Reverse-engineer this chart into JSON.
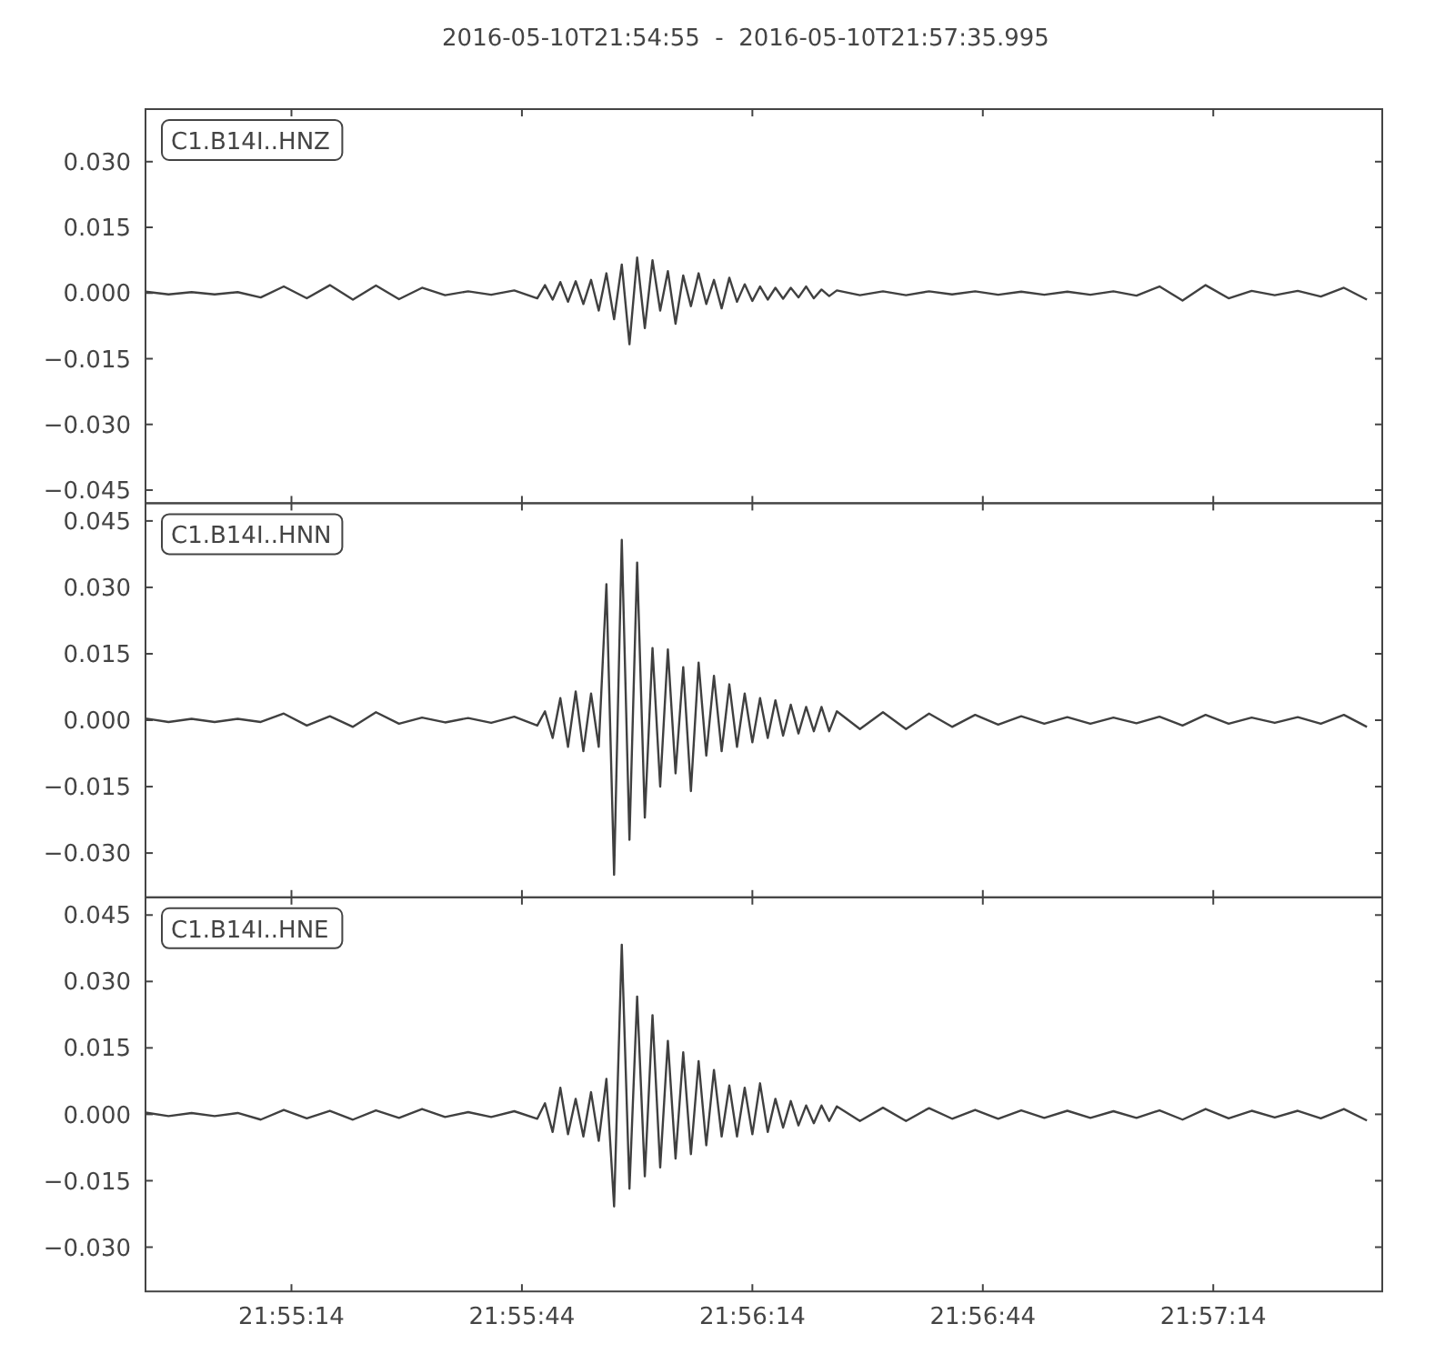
{
  "chart_data": [
    {
      "type": "line",
      "title": "2016-05-10T21:54:55  -  2016-05-10T21:57:35.995",
      "annotations": [
        "C1.B14I..HNZ"
      ],
      "tick_labels": "y",
      "grid": false,
      "xlim": [
        "2016-05-10T21:54:55",
        "2016-05-10T21:57:35.995"
      ],
      "xticks": [
        {
          "value": "2016-05-10T21:55:14",
          "label": null
        },
        {
          "value": "2016-05-10T21:55:44",
          "label": null
        },
        {
          "value": "2016-05-10T21:56:14",
          "label": null
        },
        {
          "value": "2016-05-10T21:56:44",
          "label": null
        },
        {
          "value": "2016-05-10T21:57:14",
          "label": null
        }
      ],
      "ylim": [
        -0.048,
        0.042
      ],
      "yticks": [
        {
          "value": -0.045,
          "label": "−0.045"
        },
        {
          "value": -0.03,
          "label": "−0.030"
        },
        {
          "value": -0.015,
          "label": "−0.015"
        },
        {
          "value": 0,
          "label": "0.000"
        },
        {
          "value": 0.015,
          "label": "0.015"
        },
        {
          "value": 0.03,
          "label": "0.030"
        }
      ],
      "x": [
        "2016-05-10T21:54:55",
        "2016-05-10T21:54:58",
        "2016-05-10T21:55:01",
        "2016-05-10T21:55:04",
        "2016-05-10T21:55:07",
        "2016-05-10T21:55:10",
        "2016-05-10T21:55:13",
        "2016-05-10T21:55:16",
        "2016-05-10T21:55:19",
        "2016-05-10T21:55:22",
        "2016-05-10T21:55:25",
        "2016-05-10T21:55:28",
        "2016-05-10T21:55:31",
        "2016-05-10T21:55:34",
        "2016-05-10T21:55:37",
        "2016-05-10T21:55:40",
        "2016-05-10T21:55:43",
        "2016-05-10T21:55:46",
        "2016-05-10T21:55:47",
        "2016-05-10T21:55:48",
        "2016-05-10T21:55:49",
        "2016-05-10T21:55:50",
        "2016-05-10T21:55:51",
        "2016-05-10T21:55:52",
        "2016-05-10T21:55:53",
        "2016-05-10T21:55:54",
        "2016-05-10T21:55:55",
        "2016-05-10T21:55:56",
        "2016-05-10T21:55:57",
        "2016-05-10T21:55:58",
        "2016-05-10T21:55:59",
        "2016-05-10T21:56:00",
        "2016-05-10T21:56:01",
        "2016-05-10T21:56:02",
        "2016-05-10T21:56:03",
        "2016-05-10T21:56:04",
        "2016-05-10T21:56:05",
        "2016-05-10T21:56:06",
        "2016-05-10T21:56:07",
        "2016-05-10T21:56:08",
        "2016-05-10T21:56:09",
        "2016-05-10T21:56:10",
        "2016-05-10T21:56:11",
        "2016-05-10T21:56:12",
        "2016-05-10T21:56:13",
        "2016-05-10T21:56:14",
        "2016-05-10T21:56:15",
        "2016-05-10T21:56:16",
        "2016-05-10T21:56:17",
        "2016-05-10T21:56:18",
        "2016-05-10T21:56:19",
        "2016-05-10T21:56:20",
        "2016-05-10T21:56:21",
        "2016-05-10T21:56:22",
        "2016-05-10T21:56:23",
        "2016-05-10T21:56:24",
        "2016-05-10T21:56:25",
        "2016-05-10T21:56:28",
        "2016-05-10T21:56:31",
        "2016-05-10T21:56:34",
        "2016-05-10T21:56:37",
        "2016-05-10T21:56:40",
        "2016-05-10T21:56:43",
        "2016-05-10T21:56:46",
        "2016-05-10T21:56:49",
        "2016-05-10T21:56:52",
        "2016-05-10T21:56:55",
        "2016-05-10T21:56:58",
        "2016-05-10T21:57:01",
        "2016-05-10T21:57:04",
        "2016-05-10T21:57:07",
        "2016-05-10T21:57:10",
        "2016-05-10T21:57:13",
        "2016-05-10T21:57:16",
        "2016-05-10T21:57:19",
        "2016-05-10T21:57:22",
        "2016-05-10T21:57:25",
        "2016-05-10T21:57:28",
        "2016-05-10T21:57:31",
        "2016-05-10T21:57:34"
      ],
      "series": [
        {
          "color": "#404040",
          "values": [
            0.0003,
            -0.0003,
            0.0002,
            -0.0003,
            0.0002,
            -0.001,
            0.0015,
            -0.0012,
            0.0018,
            -0.0015,
            0.0017,
            -0.0014,
            0.0012,
            -0.0005,
            0.0004,
            -0.0004,
            0.0006,
            -0.0012,
            0.0018,
            -0.0015,
            0.0025,
            -0.002,
            0.0027,
            -0.0025,
            0.003,
            -0.004,
            0.0045,
            -0.006,
            0.0065,
            -0.0117,
            0.0081,
            -0.008,
            0.0075,
            -0.004,
            0.005,
            -0.007,
            0.004,
            -0.003,
            0.0045,
            -0.0025,
            0.003,
            -0.0035,
            0.0035,
            -0.002,
            0.002,
            -0.0018,
            0.0015,
            -0.0015,
            0.0012,
            -0.0013,
            0.0012,
            -0.001,
            0.0015,
            -0.0012,
            0.0008,
            -0.0007,
            0.0006,
            -0.0005,
            0.0004,
            -0.0005,
            0.0004,
            -0.0003,
            0.0004,
            -0.0004,
            0.0003,
            -0.0004,
            0.0003,
            -0.0004,
            0.0004,
            -0.0006,
            0.0015,
            -0.0017,
            0.0018,
            -0.0012,
            0.0005,
            -0.0005,
            0.0005,
            -0.0008,
            0.0012,
            -0.0015
          ]
        }
      ]
    },
    {
      "type": "line",
      "annotations": [
        "C1.B14I..HNN"
      ],
      "tick_labels": "y",
      "grid": false,
      "xlim": [
        "2016-05-10T21:54:55",
        "2016-05-10T21:57:35.995"
      ],
      "xticks": [
        {
          "value": "2016-05-10T21:55:14",
          "label": null
        },
        {
          "value": "2016-05-10T21:55:44",
          "label": null
        },
        {
          "value": "2016-05-10T21:56:14",
          "label": null
        },
        {
          "value": "2016-05-10T21:56:44",
          "label": null
        },
        {
          "value": "2016-05-10T21:57:14",
          "label": null
        }
      ],
      "ylim": [
        -0.04,
        0.049
      ],
      "yticks": [
        {
          "value": -0.03,
          "label": "−0.030"
        },
        {
          "value": -0.015,
          "label": "−0.015"
        },
        {
          "value": 0,
          "label": "0.000"
        },
        {
          "value": 0.015,
          "label": "0.015"
        },
        {
          "value": 0.03,
          "label": "0.030"
        },
        {
          "value": 0.045,
          "label": "0.045"
        }
      ],
      "x": [
        "2016-05-10T21:54:55",
        "2016-05-10T21:54:58",
        "2016-05-10T21:55:01",
        "2016-05-10T21:55:04",
        "2016-05-10T21:55:07",
        "2016-05-10T21:55:10",
        "2016-05-10T21:55:13",
        "2016-05-10T21:55:16",
        "2016-05-10T21:55:19",
        "2016-05-10T21:55:22",
        "2016-05-10T21:55:25",
        "2016-05-10T21:55:28",
        "2016-05-10T21:55:31",
        "2016-05-10T21:55:34",
        "2016-05-10T21:55:37",
        "2016-05-10T21:55:40",
        "2016-05-10T21:55:43",
        "2016-05-10T21:55:46",
        "2016-05-10T21:55:47",
        "2016-05-10T21:55:48",
        "2016-05-10T21:55:49",
        "2016-05-10T21:55:50",
        "2016-05-10T21:55:51",
        "2016-05-10T21:55:52",
        "2016-05-10T21:55:53",
        "2016-05-10T21:55:54",
        "2016-05-10T21:55:55",
        "2016-05-10T21:55:56",
        "2016-05-10T21:55:57",
        "2016-05-10T21:55:58",
        "2016-05-10T21:55:59",
        "2016-05-10T21:56:00",
        "2016-05-10T21:56:01",
        "2016-05-10T21:56:02",
        "2016-05-10T21:56:03",
        "2016-05-10T21:56:04",
        "2016-05-10T21:56:05",
        "2016-05-10T21:56:06",
        "2016-05-10T21:56:07",
        "2016-05-10T21:56:08",
        "2016-05-10T21:56:09",
        "2016-05-10T21:56:10",
        "2016-05-10T21:56:11",
        "2016-05-10T21:56:12",
        "2016-05-10T21:56:13",
        "2016-05-10T21:56:14",
        "2016-05-10T21:56:15",
        "2016-05-10T21:56:16",
        "2016-05-10T21:56:17",
        "2016-05-10T21:56:18",
        "2016-05-10T21:56:19",
        "2016-05-10T21:56:20",
        "2016-05-10T21:56:21",
        "2016-05-10T21:56:22",
        "2016-05-10T21:56:23",
        "2016-05-10T21:56:24",
        "2016-05-10T21:56:25",
        "2016-05-10T21:56:28",
        "2016-05-10T21:56:31",
        "2016-05-10T21:56:34",
        "2016-05-10T21:56:37",
        "2016-05-10T21:56:40",
        "2016-05-10T21:56:43",
        "2016-05-10T21:56:46",
        "2016-05-10T21:56:49",
        "2016-05-10T21:56:52",
        "2016-05-10T21:56:55",
        "2016-05-10T21:56:58",
        "2016-05-10T21:57:01",
        "2016-05-10T21:57:04",
        "2016-05-10T21:57:07",
        "2016-05-10T21:57:10",
        "2016-05-10T21:57:13",
        "2016-05-10T21:57:16",
        "2016-05-10T21:57:19",
        "2016-05-10T21:57:22",
        "2016-05-10T21:57:25",
        "2016-05-10T21:57:28",
        "2016-05-10T21:57:31",
        "2016-05-10T21:57:34"
      ],
      "series": [
        {
          "color": "#404040",
          "values": [
            0.0004,
            -0.0004,
            0.0003,
            -0.0004,
            0.0003,
            -0.0004,
            0.0015,
            -0.0012,
            0.0009,
            -0.0015,
            0.0018,
            -0.0008,
            0.0006,
            -0.0005,
            0.0005,
            -0.0006,
            0.0008,
            -0.0012,
            0.002,
            -0.004,
            0.005,
            -0.006,
            0.0065,
            -0.007,
            0.006,
            -0.006,
            0.0307,
            -0.0349,
            0.0407,
            -0.027,
            0.0356,
            -0.022,
            0.0163,
            -0.015,
            0.016,
            -0.012,
            0.012,
            -0.016,
            0.013,
            -0.008,
            0.01,
            -0.007,
            0.0081,
            -0.006,
            0.006,
            -0.005,
            0.005,
            -0.004,
            0.0045,
            -0.0035,
            0.0035,
            -0.003,
            0.003,
            -0.0025,
            0.003,
            -0.0025,
            0.002,
            -0.002,
            0.0018,
            -0.002,
            0.0015,
            -0.0015,
            0.0012,
            -0.001,
            0.0009,
            -0.0008,
            0.0007,
            -0.0008,
            0.0006,
            -0.0007,
            0.0008,
            -0.0012,
            0.0012,
            -0.0008,
            0.0006,
            -0.0006,
            0.0007,
            -0.0008,
            0.0012,
            -0.0015
          ]
        }
      ]
    },
    {
      "type": "line",
      "annotations": [
        "C1.B14I..HNE"
      ],
      "grid": false,
      "xlim": [
        "2016-05-10T21:54:55",
        "2016-05-10T21:57:35.995"
      ],
      "xticks": [
        {
          "value": "2016-05-10T21:55:14",
          "label": "21:55:14"
        },
        {
          "value": "2016-05-10T21:55:44",
          "label": "21:55:44"
        },
        {
          "value": "2016-05-10T21:56:14",
          "label": "21:56:14"
        },
        {
          "value": "2016-05-10T21:56:44",
          "label": "21:56:44"
        },
        {
          "value": "2016-05-10T21:57:14",
          "label": "21:57:14"
        }
      ],
      "ylim": [
        -0.04,
        0.049
      ],
      "yticks": [
        {
          "value": -0.03,
          "label": "−0.030"
        },
        {
          "value": -0.015,
          "label": "−0.015"
        },
        {
          "value": 0,
          "label": "0.000"
        },
        {
          "value": 0.015,
          "label": "0.015"
        },
        {
          "value": 0.03,
          "label": "0.030"
        },
        {
          "value": 0.045,
          "label": "0.045"
        }
      ],
      "x": [
        "2016-05-10T21:54:55",
        "2016-05-10T21:54:58",
        "2016-05-10T21:55:01",
        "2016-05-10T21:55:04",
        "2016-05-10T21:55:07",
        "2016-05-10T21:55:10",
        "2016-05-10T21:55:13",
        "2016-05-10T21:55:16",
        "2016-05-10T21:55:19",
        "2016-05-10T21:55:22",
        "2016-05-10T21:55:25",
        "2016-05-10T21:55:28",
        "2016-05-10T21:55:31",
        "2016-05-10T21:55:34",
        "2016-05-10T21:55:37",
        "2016-05-10T21:55:40",
        "2016-05-10T21:55:43",
        "2016-05-10T21:55:46",
        "2016-05-10T21:55:47",
        "2016-05-10T21:55:48",
        "2016-05-10T21:55:49",
        "2016-05-10T21:55:50",
        "2016-05-10T21:55:51",
        "2016-05-10T21:55:52",
        "2016-05-10T21:55:53",
        "2016-05-10T21:55:54",
        "2016-05-10T21:55:55",
        "2016-05-10T21:55:56",
        "2016-05-10T21:55:57",
        "2016-05-10T21:55:58",
        "2016-05-10T21:55:59",
        "2016-05-10T21:56:00",
        "2016-05-10T21:56:01",
        "2016-05-10T21:56:02",
        "2016-05-10T21:56:03",
        "2016-05-10T21:56:04",
        "2016-05-10T21:56:05",
        "2016-05-10T21:56:06",
        "2016-05-10T21:56:07",
        "2016-05-10T21:56:08",
        "2016-05-10T21:56:09",
        "2016-05-10T21:56:10",
        "2016-05-10T21:56:11",
        "2016-05-10T21:56:12",
        "2016-05-10T21:56:13",
        "2016-05-10T21:56:14",
        "2016-05-10T21:56:15",
        "2016-05-10T21:56:16",
        "2016-05-10T21:56:17",
        "2016-05-10T21:56:18",
        "2016-05-10T21:56:19",
        "2016-05-10T21:56:20",
        "2016-05-10T21:56:21",
        "2016-05-10T21:56:22",
        "2016-05-10T21:56:23",
        "2016-05-10T21:56:24",
        "2016-05-10T21:56:25",
        "2016-05-10T21:56:28",
        "2016-05-10T21:56:31",
        "2016-05-10T21:56:34",
        "2016-05-10T21:56:37",
        "2016-05-10T21:56:40",
        "2016-05-10T21:56:43",
        "2016-05-10T21:56:46",
        "2016-05-10T21:56:49",
        "2016-05-10T21:56:52",
        "2016-05-10T21:56:55",
        "2016-05-10T21:56:58",
        "2016-05-10T21:57:01",
        "2016-05-10T21:57:04",
        "2016-05-10T21:57:07",
        "2016-05-10T21:57:10",
        "2016-05-10T21:57:13",
        "2016-05-10T21:57:16",
        "2016-05-10T21:57:19",
        "2016-05-10T21:57:22",
        "2016-05-10T21:57:25",
        "2016-05-10T21:57:28",
        "2016-05-10T21:57:31",
        "2016-05-10T21:57:34"
      ],
      "series": [
        {
          "color": "#404040",
          "values": [
            0.0004,
            -0.0004,
            0.0003,
            -0.0004,
            0.0003,
            -0.0012,
            0.001,
            -0.0009,
            0.0008,
            -0.0012,
            0.0009,
            -0.0008,
            0.0012,
            -0.0006,
            0.0005,
            -0.0006,
            0.0007,
            -0.001,
            0.0025,
            -0.004,
            0.006,
            -0.0045,
            0.0035,
            -0.005,
            0.005,
            -0.006,
            0.008,
            -0.0208,
            0.0383,
            -0.0168,
            0.0266,
            -0.014,
            0.0224,
            -0.012,
            0.0166,
            -0.01,
            0.014,
            -0.009,
            0.012,
            -0.007,
            0.01,
            -0.005,
            0.0065,
            -0.005,
            0.006,
            -0.0045,
            0.007,
            -0.004,
            0.0035,
            -0.003,
            0.003,
            -0.0025,
            0.002,
            -0.002,
            0.002,
            -0.0015,
            0.0018,
            -0.0015,
            0.0015,
            -0.0015,
            0.0014,
            -0.001,
            0.001,
            -0.001,
            0.0009,
            -0.0008,
            0.0008,
            -0.0008,
            0.0007,
            -0.0008,
            0.0009,
            -0.0012,
            0.0012,
            -0.0009,
            0.0008,
            -0.0007,
            0.0008,
            -0.0009,
            0.0012,
            -0.0014
          ]
        }
      ]
    }
  ]
}
